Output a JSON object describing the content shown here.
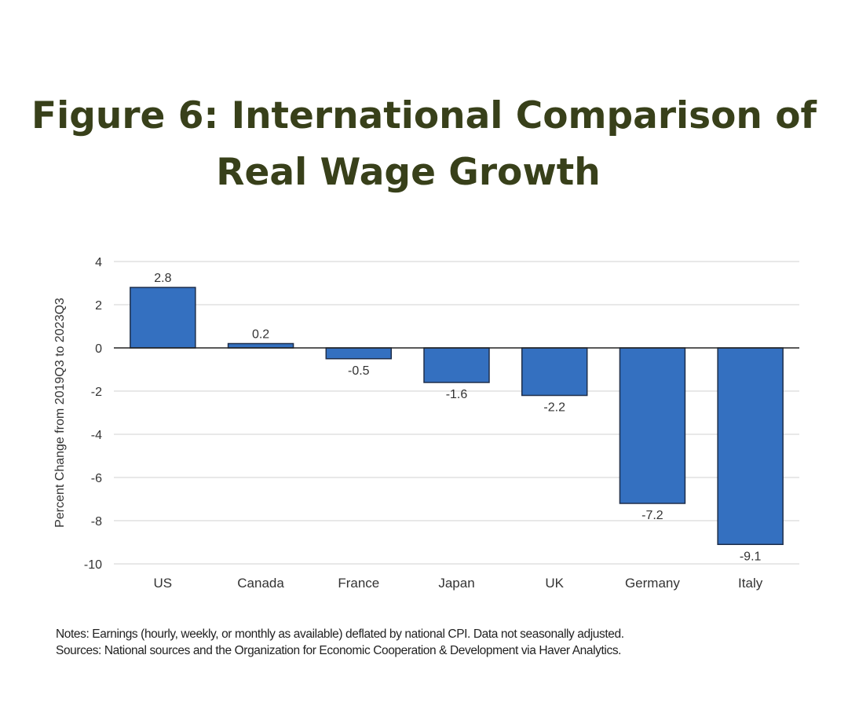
{
  "title_line1": "Figure 6: International Comparison of",
  "title_line2": "Real Wage Growth",
  "notes": "Notes: Earnings (hourly, weekly, or monthly  as available) deflated by national CPI. Data not seasonally adjusted.",
  "sources": "Sources: National sources and the Organization for Economic Cooperation & Development via Haver Analytics.",
  "colors": {
    "bar": "#3470c0",
    "bar_border": "#1e2e4a",
    "title": "#38401a"
  },
  "chart_data": {
    "type": "bar",
    "title": "Figure 6: International Comparison of Real Wage Growth",
    "xlabel": "",
    "ylabel": "Percent Change from 2019Q3 to 2023Q3",
    "categories": [
      "US",
      "Canada",
      "France",
      "Japan",
      "UK",
      "Germany",
      "Italy"
    ],
    "values": [
      2.8,
      0.2,
      -0.5,
      -1.6,
      -2.2,
      -7.2,
      -9.1
    ],
    "data_labels": [
      "2.8",
      "0.2",
      "-0.5",
      "-1.6",
      "-2.2",
      "-7.2",
      "-9.1"
    ],
    "ylim": [
      -10,
      4
    ],
    "yticks": [
      4,
      2,
      0,
      -2,
      -4,
      -6,
      -8,
      -10
    ],
    "grid": true,
    "legend": "none"
  }
}
